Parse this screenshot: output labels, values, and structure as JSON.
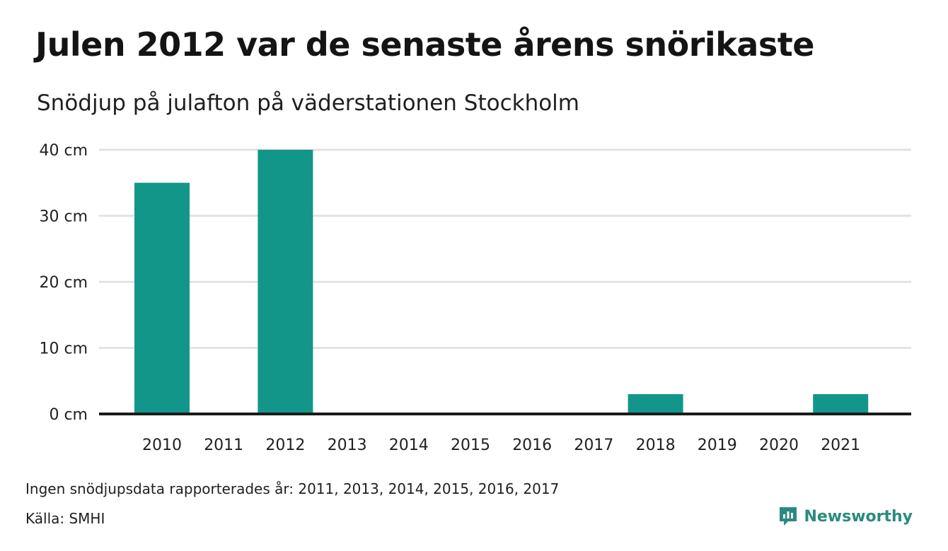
{
  "title": "Julen 2012 var de senaste årens snörikaste",
  "subtitle": "Snödjup på julafton på väderstationen Stockholm",
  "note": "Ingen snödjupsdata rapporterades år: 2011, 2013, 2014, 2015, 2016, 2017",
  "source": "Källa: SMHI",
  "brand": {
    "name": "Newsworthy",
    "color": "#2a8a80",
    "icon": "chart-bubble-icon"
  },
  "chart_data": {
    "type": "bar",
    "categories": [
      "2010",
      "2011",
      "2012",
      "2013",
      "2014",
      "2015",
      "2016",
      "2017",
      "2018",
      "2019",
      "2020",
      "2021"
    ],
    "values": [
      35,
      null,
      40,
      null,
      null,
      null,
      null,
      null,
      3,
      0,
      0,
      3
    ],
    "ylim": [
      0,
      40
    ],
    "yticks": [
      0,
      10,
      20,
      30,
      40
    ],
    "ytick_labels": [
      "0 cm",
      "10 cm",
      "20 cm",
      "30 cm",
      "40 cm"
    ],
    "title": "Julen 2012 var de senaste årens snörikaste",
    "xlabel": "",
    "ylabel": "",
    "grid": true,
    "bar_color": "#13968a",
    "grid_color": "#dedede",
    "axis_color": "#1a1a1a"
  }
}
